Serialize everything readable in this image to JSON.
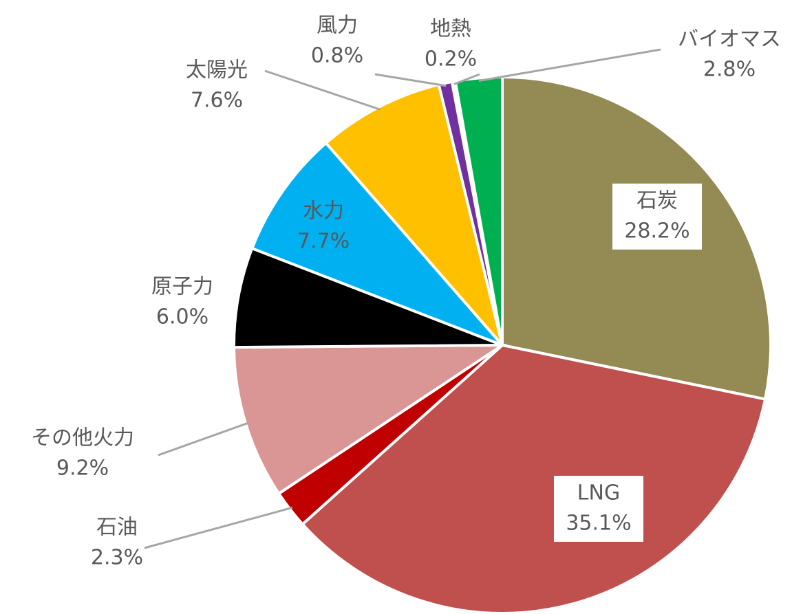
{
  "chart_data": {
    "type": "pie",
    "categories": [
      "石炭",
      "LNG",
      "石油",
      "その他火力",
      "原子力",
      "水力",
      "太陽光",
      "風力",
      "地熱",
      "バイオマス"
    ],
    "values": [
      28.2,
      35.1,
      2.3,
      9.2,
      6.0,
      7.7,
      7.6,
      0.8,
      0.2,
      2.8
    ],
    "value_labels": [
      "28.2%",
      "35.1%",
      "2.3%",
      "9.2%",
      "6.0%",
      "7.7%",
      "7.6%",
      "0.8%",
      "0.2%",
      "2.8%"
    ],
    "colors": [
      "#948a54",
      "#c0504d",
      "#c00000",
      "#d99694",
      "#000000",
      "#00b0f0",
      "#ffc000",
      "#7030a0",
      "#ffffff",
      "#00b050"
    ]
  }
}
